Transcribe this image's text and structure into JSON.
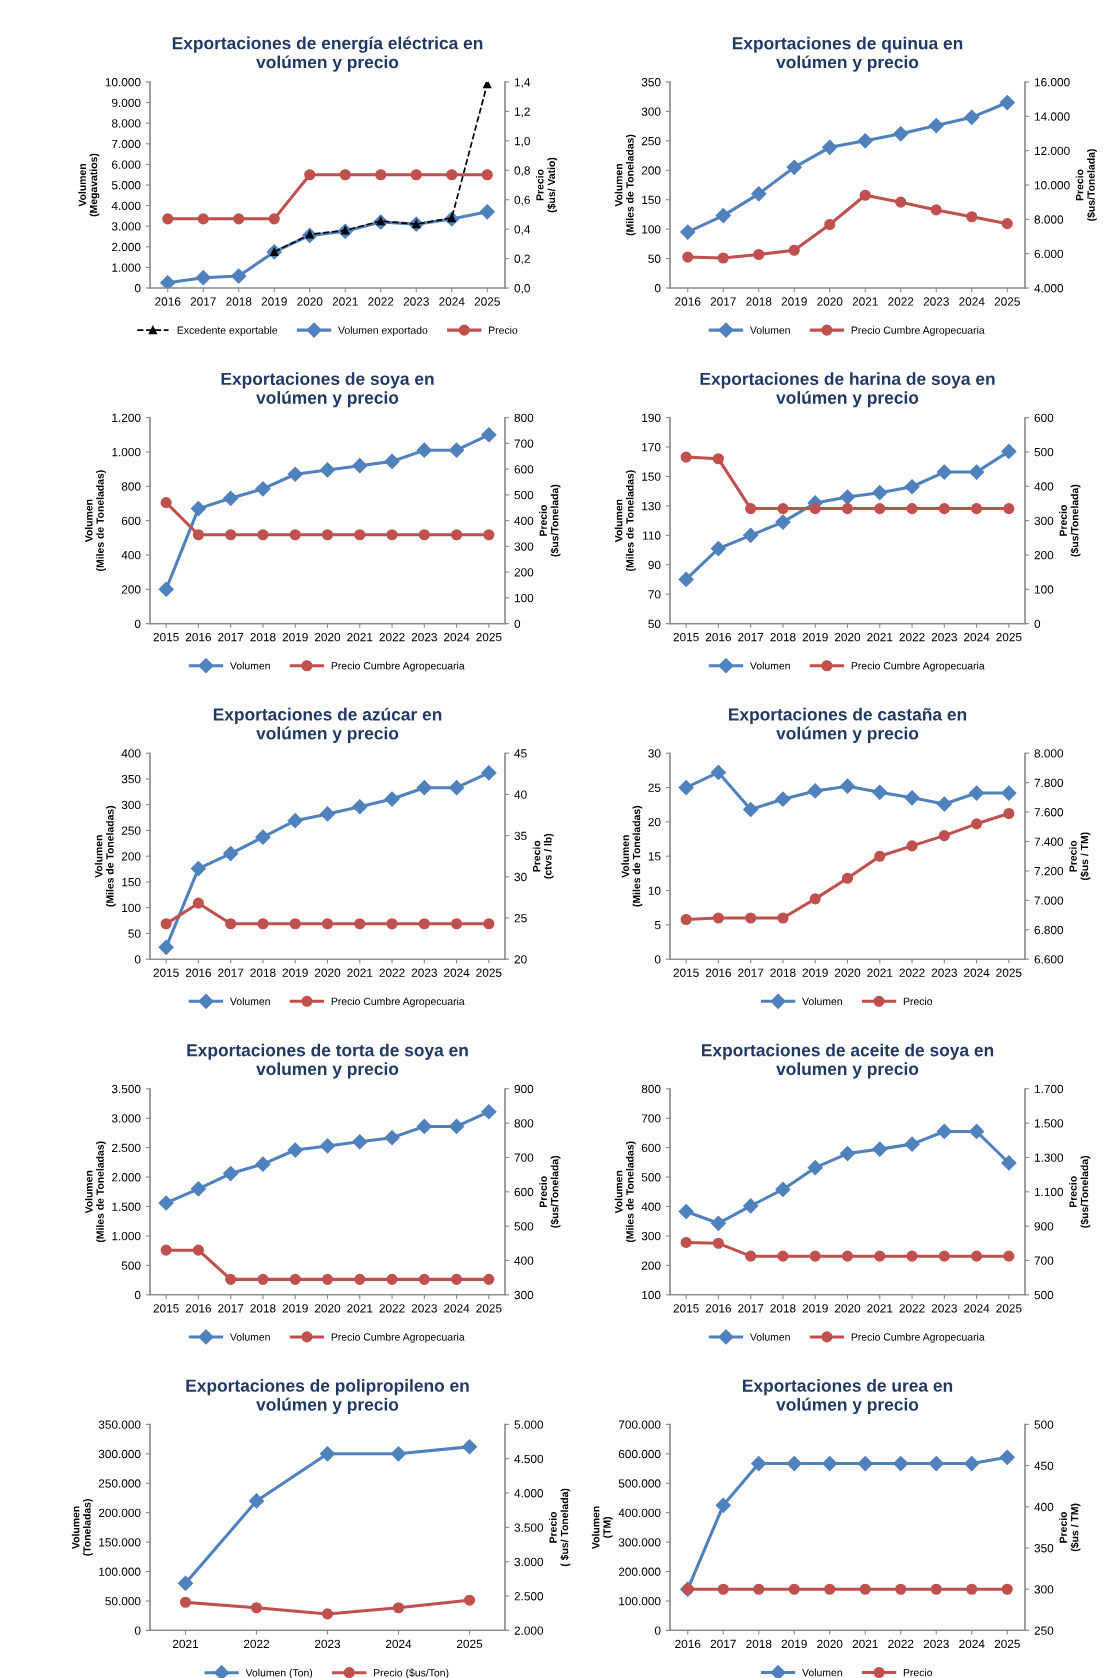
{
  "chart_data": [
    {
      "type": "line",
      "title": "Exportaciones de energía eléctrica en\nvolúmen y precio",
      "ylabel": "Volumen\n(Megavatios)",
      "y2label": "Precio\n($us/ Vatio)",
      "categories": [
        "2016",
        "2017",
        "2018",
        "2019",
        "2020",
        "2021",
        "2022",
        "2023",
        "2024",
        "2025"
      ],
      "series": [
        {
          "name": "Excedente exportable",
          "color": "#000000",
          "marker": "triangle",
          "line_style": "dashed",
          "values": [
            null,
            null,
            null,
            1750,
            2600,
            2800,
            3250,
            3100,
            3400,
            9900
          ]
        },
        {
          "name": "Volumen exportado",
          "color": "#4f81bd",
          "marker": "diamond",
          "values": [
            250,
            500,
            580,
            1750,
            2550,
            2750,
            3200,
            3100,
            3350,
            3700
          ]
        },
        {
          "name": "Precio",
          "color": "#c0504d",
          "marker": "circle",
          "axis": "y2",
          "values": [
            0.47,
            0.47,
            0.47,
            0.47,
            0.77,
            0.77,
            0.77,
            0.77,
            0.77,
            0.77
          ]
        }
      ],
      "ylim": [
        0,
        10000
      ],
      "yticks": [
        0,
        {
          "value": 1000,
          "label": "1.000"
        },
        {
          "value": 2000,
          "label": "2.000"
        },
        {
          "value": 3000,
          "label": "3.000"
        },
        {
          "value": 4000,
          "label": "4.000"
        },
        {
          "value": 5000,
          "label": "5.000"
        },
        {
          "value": 6000,
          "label": "6.000"
        },
        {
          "value": 7000,
          "label": "7.000"
        },
        {
          "value": 8000,
          "label": "8.000"
        },
        {
          "value": 9000,
          "label": "9.000"
        },
        {
          "value": 10000,
          "label": "10.000"
        }
      ],
      "y2lim": [
        0,
        1.4
      ],
      "y2ticks": [
        {
          "value": 0,
          "label": "0,0"
        },
        {
          "value": 0.2,
          "label": "0,2"
        },
        {
          "value": 0.4,
          "label": "0,4"
        },
        {
          "value": 0.6,
          "label": "0,6"
        },
        {
          "value": 0.8,
          "label": "0,8"
        },
        {
          "value": 1.0,
          "label": "1,0"
        },
        {
          "value": 1.2,
          "label": "1,2"
        },
        {
          "value": 1.4,
          "label": "1,4"
        }
      ],
      "legend": "bottom",
      "grid": false
    },
    {
      "type": "line",
      "title": "Exportaciones de quinua en\nvolúmen y precio",
      "ylabel": "Volumen\n(Miles de Toneladas)",
      "y2label": "Precio\n($us/Tonelada)",
      "categories": [
        "2016",
        "2017",
        "2018",
        "2019",
        "2020",
        "2021",
        "2022",
        "2023",
        "2024",
        "2025"
      ],
      "series": [
        {
          "name": "Volumen",
          "color": "#4f81bd",
          "marker": "diamond",
          "values": [
            95,
            123,
            160,
            205,
            239,
            250,
            262,
            276,
            290,
            315
          ]
        },
        {
          "name": "Precio Cumbre Agropecuaria",
          "color": "#c0504d",
          "marker": "circle",
          "axis": "y2",
          "values": [
            5800,
            5750,
            5950,
            6200,
            7700,
            9400,
            9000,
            8550,
            8150,
            7750
          ]
        }
      ],
      "ylim": [
        0,
        350
      ],
      "yticks": [
        0,
        50,
        100,
        150,
        200,
        250,
        300,
        350
      ],
      "y2lim": [
        4000,
        16000
      ],
      "y2ticks": [
        {
          "value": 4000,
          "label": "4.000"
        },
        {
          "value": 6000,
          "label": "6.000"
        },
        {
          "value": 8000,
          "label": "8.000"
        },
        {
          "value": 10000,
          "label": "10.000"
        },
        {
          "value": 12000,
          "label": "12.000"
        },
        {
          "value": 14000,
          "label": "14.000"
        },
        {
          "value": 16000,
          "label": "16.000"
        }
      ],
      "legend": "bottom",
      "grid": false
    },
    {
      "type": "line",
      "title": "Exportaciones de soya en\nvolúmen y precio",
      "ylabel": "Volumen\n(Miles de Toneladas)",
      "y2label": "Precio\n($us/Tonelada)",
      "categories": [
        "2015",
        "2016",
        "2017",
        "2018",
        "2019",
        "2020",
        "2021",
        "2022",
        "2023",
        "2024",
        "2025"
      ],
      "series": [
        {
          "name": "Volumen",
          "color": "#4f81bd",
          "marker": "diamond",
          "values": [
            200,
            670,
            730,
            785,
            870,
            895,
            920,
            945,
            1010,
            1010,
            1100
          ]
        },
        {
          "name": "Precio Cumbre Agropecuaria",
          "color": "#c0504d",
          "marker": "circle",
          "axis": "y2",
          "values": [
            470,
            345,
            345,
            345,
            345,
            345,
            345,
            345,
            345,
            345,
            345
          ]
        }
      ],
      "ylim": [
        0,
        1200
      ],
      "yticks": [
        0,
        200,
        400,
        600,
        800,
        {
          "value": 1000,
          "label": "1.000"
        },
        {
          "value": 1200,
          "label": "1.200"
        }
      ],
      "y2lim": [
        0,
        800
      ],
      "y2ticks": [
        0,
        100,
        200,
        300,
        400,
        500,
        600,
        700,
        800
      ],
      "legend": "bottom",
      "grid": false
    },
    {
      "type": "line",
      "title": "Exportaciones de harina de soya en\nvolúmen y precio",
      "ylabel": "Volumen\n(Miles de Toneladas)",
      "y2label": "Precio\n($us/Tonelada)",
      "categories": [
        "2015",
        "2016",
        "2017",
        "2018",
        "2019",
        "2020",
        "2021",
        "2022",
        "2023",
        "2024",
        "2025"
      ],
      "series": [
        {
          "name": "Volumen",
          "color": "#4f81bd",
          "marker": "diamond",
          "values": [
            80,
            101,
            110,
            119,
            132,
            136,
            139,
            143,
            153,
            153,
            167
          ]
        },
        {
          "name": "Precio Cumbre Agropecuaria",
          "color": "#c0504d",
          "marker": "circle",
          "axis": "y2",
          "values": [
            485,
            480,
            335,
            335,
            335,
            335,
            335,
            335,
            335,
            335,
            335
          ]
        }
      ],
      "ylim": [
        50,
        190
      ],
      "yticks": [
        50,
        70,
        90,
        110,
        130,
        150,
        170,
        190
      ],
      "y2lim": [
        0,
        600
      ],
      "y2ticks": [
        0,
        100,
        200,
        300,
        400,
        500,
        600
      ],
      "legend": "bottom",
      "grid": false
    },
    {
      "type": "line",
      "title": "Exportaciones de azúcar en\nvolúmen y precio",
      "ylabel": "Volumen\n(Miles de Toneladas)",
      "y2label": "Precio\n(ctvs / lb)",
      "categories": [
        "2015",
        "2016",
        "2017",
        "2018",
        "2019",
        "2020",
        "2021",
        "2022",
        "2023",
        "2024",
        "2025"
      ],
      "series": [
        {
          "name": "Volumen",
          "color": "#4f81bd",
          "marker": "diamond",
          "values": [
            23,
            176,
            205,
            237,
            269,
            282,
            296,
            311,
            333,
            333,
            362
          ]
        },
        {
          "name": "Precio Cumbre Agropecuaria",
          "color": "#c0504d",
          "marker": "circle",
          "axis": "y2",
          "values": [
            24.3,
            26.8,
            24.3,
            24.3,
            24.3,
            24.3,
            24.3,
            24.3,
            24.3,
            24.3,
            24.3
          ]
        }
      ],
      "ylim": [
        0,
        400
      ],
      "yticks": [
        0,
        50,
        100,
        150,
        200,
        250,
        300,
        350,
        400
      ],
      "y2lim": [
        20,
        45
      ],
      "y2ticks": [
        20,
        25,
        30,
        35,
        40,
        45
      ],
      "legend": "bottom",
      "grid": false
    },
    {
      "type": "line",
      "title": "Exportaciones de castaña en\nvolúmen y precio",
      "ylabel": "Volumen\n(Miles de Toneladas)",
      "y2label": "Precio\n($us / TM)",
      "categories": [
        "2015",
        "2016",
        "2017",
        "2018",
        "2019",
        "2020",
        "2021",
        "2022",
        "2023",
        "2024",
        "2025"
      ],
      "series": [
        {
          "name": "Volumen",
          "color": "#4f81bd",
          "marker": "diamond",
          "values": [
            25,
            27.2,
            21.8,
            23.3,
            24.5,
            25.2,
            24.3,
            23.5,
            22.6,
            24.2,
            24.2
          ]
        },
        {
          "name": "Precio",
          "color": "#c0504d",
          "marker": "circle",
          "axis": "y2",
          "values": [
            6870,
            6880,
            6880,
            6880,
            7010,
            7150,
            7300,
            7370,
            7440,
            7520,
            7590
          ]
        }
      ],
      "ylim": [
        0,
        30
      ],
      "yticks": [
        0,
        5,
        10,
        15,
        20,
        25,
        30
      ],
      "y2lim": [
        6600,
        8000
      ],
      "y2ticks": [
        {
          "value": 6600,
          "label": "6.600"
        },
        {
          "value": 6800,
          "label": "6.800"
        },
        {
          "value": 7000,
          "label": "7.000"
        },
        {
          "value": 7200,
          "label": "7.200"
        },
        {
          "value": 7400,
          "label": "7.400"
        },
        {
          "value": 7600,
          "label": "7.600"
        },
        {
          "value": 7800,
          "label": "7.800"
        },
        {
          "value": 8000,
          "label": "8.000"
        }
      ],
      "legend": "bottom",
      "grid": false
    },
    {
      "type": "line",
      "title": "Exportaciones de torta de soya en\nvolumen y precio",
      "ylabel": "Volumen\n(Miles de Toneladas)",
      "y2label": "Precio\n($us/Tonelada)",
      "categories": [
        "2015",
        "2016",
        "2017",
        "2018",
        "2019",
        "2020",
        "2021",
        "2022",
        "2023",
        "2024",
        "2025"
      ],
      "series": [
        {
          "name": "Volumen",
          "color": "#4f81bd",
          "marker": "diamond",
          "values": [
            1560,
            1800,
            2060,
            2220,
            2460,
            2530,
            2600,
            2670,
            2860,
            2860,
            3110
          ]
        },
        {
          "name": "Precio Cumbre Agropecuaria",
          "color": "#c0504d",
          "marker": "circle",
          "axis": "y2",
          "values": [
            430,
            430,
            345,
            345,
            345,
            345,
            345,
            345,
            345,
            345,
            345
          ]
        }
      ],
      "ylim": [
        0,
        3500
      ],
      "yticks": [
        0,
        500,
        {
          "value": 1000,
          "label": "1.000"
        },
        {
          "value": 1500,
          "label": "1.500"
        },
        {
          "value": 2000,
          "label": "2.000"
        },
        {
          "value": 2500,
          "label": "2.500"
        },
        {
          "value": 3000,
          "label": "3.000"
        },
        {
          "value": 3500,
          "label": "3.500"
        }
      ],
      "y2lim": [
        300,
        900
      ],
      "y2ticks": [
        300,
        400,
        500,
        600,
        700,
        800,
        900
      ],
      "legend": "bottom",
      "grid": false
    },
    {
      "type": "line",
      "title": "Exportaciones de aceite de soya en\nvolumen y precio",
      "ylabel": "Volumen\n(Miles de Toneladas)",
      "y2label": "Precio\n($us/Tonelada)",
      "categories": [
        "2015",
        "2016",
        "2017",
        "2018",
        "2019",
        "2020",
        "2021",
        "2022",
        "2023",
        "2024",
        "2025"
      ],
      "series": [
        {
          "name": "Volumen",
          "color": "#4f81bd",
          "marker": "diamond",
          "values": [
            383,
            343,
            402,
            458,
            532,
            580,
            595,
            612,
            655,
            655,
            548
          ]
        },
        {
          "name": "Precio Cumbre Agropecuaria",
          "color": "#c0504d",
          "marker": "circle",
          "axis": "y2",
          "values": [
            805,
            800,
            725,
            725,
            725,
            725,
            725,
            725,
            725,
            725,
            725
          ]
        }
      ],
      "ylim": [
        100,
        800
      ],
      "yticks": [
        100,
        200,
        300,
        400,
        500,
        600,
        700,
        800
      ],
      "y2lim": [
        500,
        1700
      ],
      "y2ticks": [
        500,
        700,
        900,
        {
          "value": 1100,
          "label": "1.100"
        },
        {
          "value": 1300,
          "label": "1.300"
        },
        {
          "value": 1500,
          "label": "1.500"
        },
        {
          "value": 1700,
          "label": "1.700"
        }
      ],
      "legend": "bottom",
      "grid": false
    },
    {
      "type": "line",
      "title": "Exportaciones de polipropileno en\nvolúmen y precio",
      "ylabel": "Volumen\n(Toneladas)",
      "y2label": "Precio\n( $us/ Tonelada)",
      "categories": [
        "2021",
        "2022",
        "2023",
        "2024",
        "2025"
      ],
      "series": [
        {
          "name": "Volumen (Ton)",
          "color": "#4f81bd",
          "marker": "diamond",
          "values": [
            80000,
            220000,
            300000,
            300000,
            312000
          ]
        },
        {
          "name": "Precio ($us/Ton)",
          "color": "#c0504d",
          "marker": "circle",
          "axis": "y2",
          "values": [
            2410,
            2330,
            2240,
            2330,
            2440
          ]
        }
      ],
      "ylim": [
        0,
        350000
      ],
      "yticks": [
        0,
        {
          "value": 50000,
          "label": "50.000"
        },
        {
          "value": 100000,
          "label": "100.000"
        },
        {
          "value": 150000,
          "label": "150.000"
        },
        {
          "value": 200000,
          "label": "200.000"
        },
        {
          "value": 250000,
          "label": "250.000"
        },
        {
          "value": 300000,
          "label": "300.000"
        },
        {
          "value": 350000,
          "label": "350.000"
        }
      ],
      "y2lim": [
        2000,
        5000
      ],
      "y2ticks": [
        {
          "value": 2000,
          "label": "2.000"
        },
        {
          "value": 2500,
          "label": "2.500"
        },
        {
          "value": 3000,
          "label": "3.000"
        },
        {
          "value": 3500,
          "label": "3.500"
        },
        {
          "value": 4000,
          "label": "4.000"
        },
        {
          "value": 4500,
          "label": "4.500"
        },
        {
          "value": 5000,
          "label": "5.000"
        }
      ],
      "legend": "bottom",
      "grid": false
    },
    {
      "type": "line",
      "title": "Exportaciones de urea en\nvolúmen y precio",
      "ylabel": "Volumen\n(TM)",
      "y2label": "Precio\n($us / TM)",
      "categories": [
        "2016",
        "2017",
        "2018",
        "2019",
        "2020",
        "2021",
        "2022",
        "2023",
        "2024",
        "2025"
      ],
      "series": [
        {
          "name": "Volumen",
          "color": "#4f81bd",
          "marker": "diamond",
          "values": [
            140000,
            425000,
            567000,
            567000,
            567000,
            567000,
            567000,
            567000,
            567000,
            588000
          ]
        },
        {
          "name": "Precio",
          "color": "#c0504d",
          "marker": "circle",
          "axis": "y2",
          "values": [
            300,
            300,
            300,
            300,
            300,
            300,
            300,
            300,
            300,
            300
          ]
        }
      ],
      "ylim": [
        0,
        700000
      ],
      "yticks": [
        0,
        {
          "value": 100000,
          "label": "100.000"
        },
        {
          "value": 200000,
          "label": "200.000"
        },
        {
          "value": 300000,
          "label": "300.000"
        },
        {
          "value": 400000,
          "label": "400.000"
        },
        {
          "value": 500000,
          "label": "500.000"
        },
        {
          "value": 600000,
          "label": "600.000"
        },
        {
          "value": 700000,
          "label": "700.000"
        }
      ],
      "y2lim": [
        250,
        500
      ],
      "y2ticks": [
        250,
        300,
        350,
        400,
        450,
        500
      ],
      "legend": "bottom",
      "grid": false
    }
  ]
}
